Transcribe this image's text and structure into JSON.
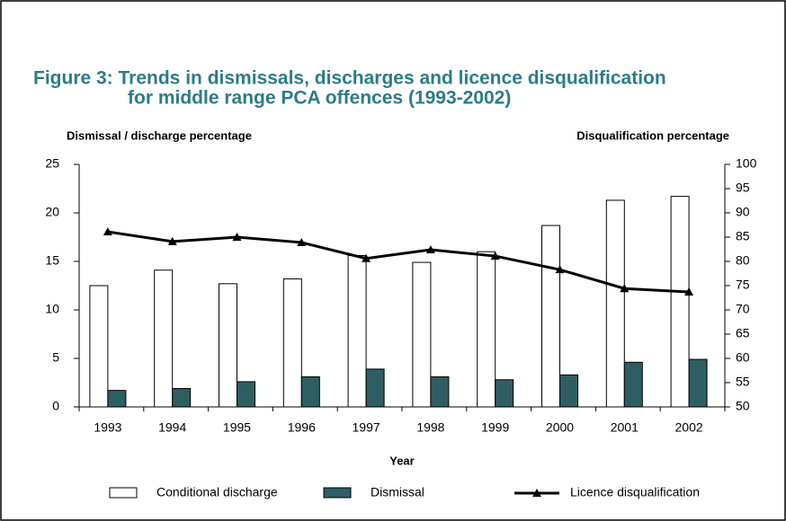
{
  "chart_data": {
    "type": "bar-line",
    "title": [
      "Figure 3:  Trends in dismissals, discharges and licence disqualification",
      "for middle range PCA offences (1993-2002)"
    ],
    "y_label": "Dismissal / discharge percentage",
    "y2_label": "Disqualification percentage",
    "x_label": "Year",
    "categories": [
      "1993",
      "1994",
      "1995",
      "1996",
      "1997",
      "1998",
      "1999",
      "2000",
      "2001",
      "2002"
    ],
    "series": [
      {
        "name": "Conditional discharge",
        "type": "bar",
        "color": "#ffffff",
        "values": [
          12.5,
          14.1,
          12.7,
          13.2,
          15.6,
          14.9,
          16.0,
          18.7,
          21.3,
          21.7
        ]
      },
      {
        "name": "Dismissal",
        "type": "bar",
        "color": "#2e5e63",
        "values": [
          1.7,
          1.9,
          2.6,
          3.1,
          3.9,
          3.1,
          2.8,
          3.3,
          4.6,
          4.9
        ]
      },
      {
        "name": "Licence disqualification",
        "type": "line",
        "axis": "y2",
        "color": "#000000",
        "values": [
          86.1,
          84.1,
          85.0,
          83.9,
          80.6,
          82.4,
          81.1,
          78.3,
          74.4,
          73.7
        ]
      }
    ],
    "ylim": [
      0,
      25
    ],
    "yticks": [
      0,
      5,
      10,
      15,
      20,
      25
    ],
    "y2lim": [
      50,
      100
    ],
    "y2ticks": [
      50,
      55,
      60,
      65,
      70,
      75,
      80,
      85,
      90,
      95,
      100
    ],
    "grid": false
  }
}
